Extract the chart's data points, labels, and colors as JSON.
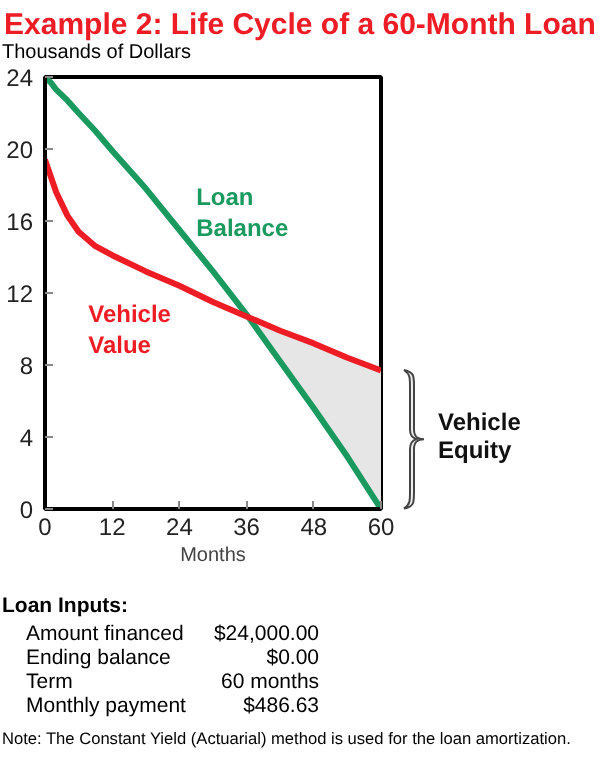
{
  "chart_data": {
    "type": "line",
    "title": "Example 2: Life Cycle of a 60-Month Loan",
    "ylabel": "Thousands of Dollars",
    "xlabel": "Months",
    "x": [
      0,
      1,
      2,
      4,
      6,
      9,
      12,
      18,
      24,
      30,
      36,
      42,
      48,
      54,
      60
    ],
    "series": [
      {
        "name": "Loan Balance",
        "color": "#1a9a5e",
        "values": [
          24.0,
          23.7,
          23.3,
          22.7,
          22.0,
          21.0,
          19.9,
          17.8,
          15.5,
          13.2,
          10.8,
          8.2,
          5.6,
          2.9,
          0.0
        ]
      },
      {
        "name": "Vehicle Value",
        "color": "#ee1c24",
        "values": [
          19.4,
          18.5,
          17.6,
          16.3,
          15.4,
          14.6,
          14.1,
          13.2,
          12.4,
          11.5,
          10.7,
          9.9,
          9.2,
          8.4,
          7.7
        ],
        "lower": [
          null,
          null,
          null,
          null,
          null,
          null,
          null,
          null,
          null,
          null,
          10.8,
          8.2,
          5.6,
          2.9,
          0.0
        ],
        "upper": [
          null,
          null,
          null,
          null,
          null,
          null,
          null,
          null,
          null,
          null,
          10.7,
          9.9,
          9.2,
          8.4,
          7.7
        ]
      }
    ],
    "xlim": [
      0,
      60
    ],
    "ylim": [
      0,
      24
    ],
    "xticks": [
      0,
      12,
      24,
      36,
      48,
      60
    ],
    "yticks": [
      0,
      4,
      8,
      12,
      16,
      20,
      24
    ],
    "grid": false,
    "legend": false,
    "marker": "none",
    "line_style": "solid",
    "annotations": [
      {
        "text": "Vehicle Equity",
        "x": 60,
        "y": 4
      },
      "Loan Inputs:",
      "Amount financed",
      "$24,000.00",
      "Ending balance",
      "$0.00",
      "Term",
      "60 months",
      "Monthly payment",
      "$486.63",
      "Note: The Constant Yield (Actuarial) method is used for the loan amortization."
    ]
  }
}
